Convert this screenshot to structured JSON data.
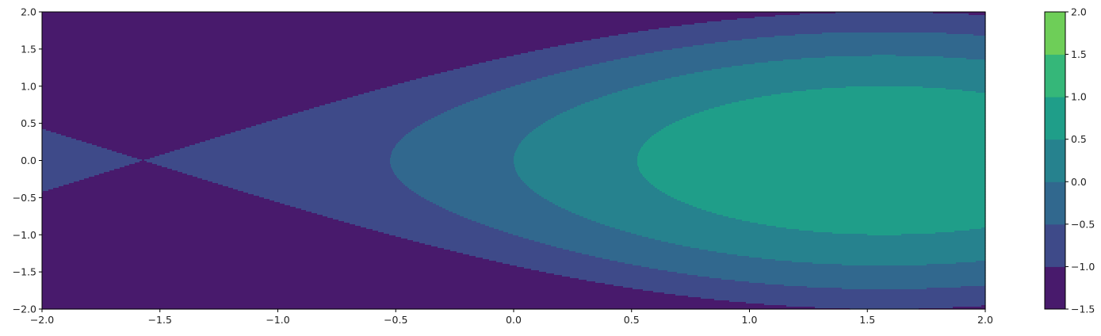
{
  "chart_data": {
    "type": "contour",
    "title": "",
    "xlabel": "",
    "ylabel": "",
    "xlim": [
      -2.0,
      2.0
    ],
    "ylim": [
      -2.0,
      2.0
    ],
    "grid": false,
    "function": "sin(x) - y^2 / 2 (filled contours)",
    "levels": [
      -1.5,
      -1.0,
      -0.5,
      0.0,
      0.5,
      1.0,
      1.5,
      2.0
    ],
    "colors": [
      "#481a6c",
      "#3e4a89",
      "#31688e",
      "#26828e",
      "#1f9e89",
      "#35b779",
      "#6ece58",
      "#d2e21b"
    ],
    "xticks": [
      {
        "value": -2.0,
        "label": "−2.0"
      },
      {
        "value": -1.5,
        "label": "−1.5"
      },
      {
        "value": -1.0,
        "label": "−1.0"
      },
      {
        "value": -0.5,
        "label": "−0.5"
      },
      {
        "value": 0.0,
        "label": "0.0"
      },
      {
        "value": 0.5,
        "label": "0.5"
      },
      {
        "value": 1.0,
        "label": "1.0"
      },
      {
        "value": 1.5,
        "label": "1.5"
      },
      {
        "value": 2.0,
        "label": "2.0"
      }
    ],
    "yticks": [
      {
        "value": -2.0,
        "label": "−2.0"
      },
      {
        "value": -1.5,
        "label": "−1.5"
      },
      {
        "value": -1.0,
        "label": "−1.0"
      },
      {
        "value": -0.5,
        "label": "−0.5"
      },
      {
        "value": 0.0,
        "label": "0.0"
      },
      {
        "value": 0.5,
        "label": "0.5"
      },
      {
        "value": 1.0,
        "label": "1.0"
      },
      {
        "value": 1.5,
        "label": "1.5"
      },
      {
        "value": 2.0,
        "label": "2.0"
      }
    ],
    "colorbar": {
      "ticks": [
        {
          "value": -1.5,
          "label": "−1.5"
        },
        {
          "value": -1.0,
          "label": "−1.0"
        },
        {
          "value": -0.5,
          "label": "−0.5"
        },
        {
          "value": 0.0,
          "label": "0.0"
        },
        {
          "value": 0.5,
          "label": "0.5"
        },
        {
          "value": 1.0,
          "label": "1.0"
        },
        {
          "value": 1.5,
          "label": "1.5"
        },
        {
          "value": 2.0,
          "label": "2.0"
        }
      ]
    }
  }
}
